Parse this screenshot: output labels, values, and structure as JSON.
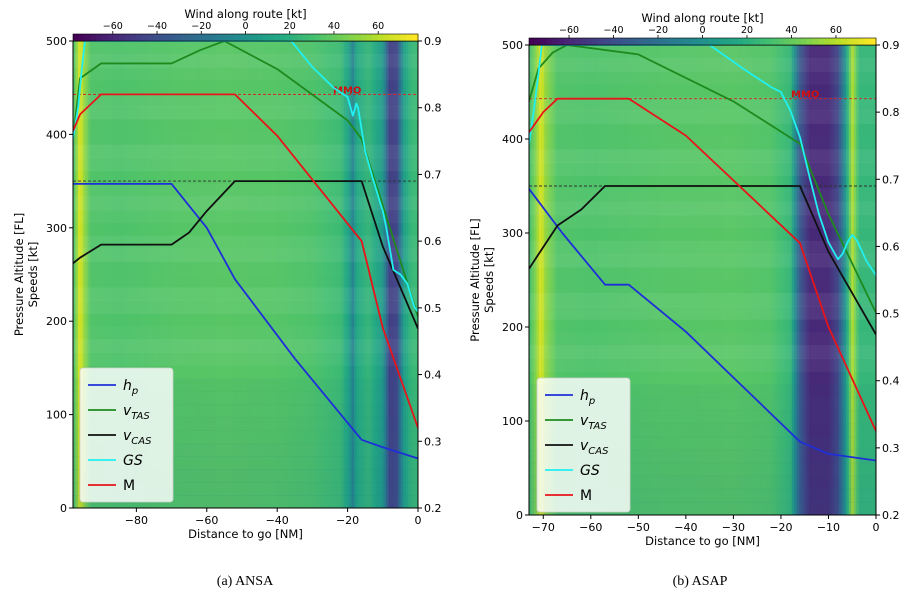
{
  "chart_data": [
    {
      "type": "line",
      "caption": "(a)  ANSA",
      "xlabel": "Distance to go [NM]",
      "ylabel_left": [
        "Pressure Altitude [FL]",
        "Speeds [kt]"
      ],
      "x2label": "Wind along route [kt]",
      "xlim": [
        -98,
        0
      ],
      "ylim": [
        0,
        500
      ],
      "y2lim": [
        0.2,
        0.9
      ],
      "x2lim": [
        -78,
        78
      ],
      "xticks": [
        -80,
        -60,
        -40,
        -20,
        0
      ],
      "yticks": [
        0,
        100,
        200,
        300,
        400,
        500
      ],
      "y2ticks": [
        0.2,
        0.3,
        0.4,
        0.5,
        0.6,
        0.7,
        0.8,
        0.9
      ],
      "x2ticks": [
        -60,
        -40,
        -20,
        0,
        20,
        40,
        60
      ],
      "mmo_label": "MMO",
      "mmo_value": 0.82,
      "vmo_value": 350,
      "legend_location": "lower-left",
      "legend": [
        "$h_p$",
        "$v_{TAS}$",
        "$v_{CAS}$",
        "GS",
        "M"
      ],
      "colors": {
        "h_p": "#1f2fd8",
        "v_TAS": "#1e8a1e",
        "v_CAS": "#101010",
        "GS": "#20f0f0",
        "M": "#e8141a",
        "mmo_line": "#d42020",
        "vmo_line": "#303030"
      },
      "background_wind": {
        "description": "wind along route colormap (viridis) over distance/altitude",
        "columns": [
          {
            "x": -98,
            "v": 30
          },
          {
            "x": -97,
            "v": 50
          },
          {
            "x": -96,
            "v": 72
          },
          {
            "x": -95,
            "v": 55
          },
          {
            "x": -93,
            "v": 35
          },
          {
            "x": -85,
            "v": 34
          },
          {
            "x": -70,
            "v": 36
          },
          {
            "x": -55,
            "v": 37
          },
          {
            "x": -40,
            "v": 36
          },
          {
            "x": -30,
            "v": 34
          },
          {
            "x": -22,
            "v": 28
          },
          {
            "x": -19.5,
            "v": 10
          },
          {
            "x": -18.5,
            "v": -10
          },
          {
            "x": -17.5,
            "v": 15
          },
          {
            "x": -14,
            "v": 25
          },
          {
            "x": -10,
            "v": 5
          },
          {
            "x": -8,
            "v": -50
          },
          {
            "x": -6,
            "v": -45
          },
          {
            "x": -4,
            "v": 10
          },
          {
            "x": -2,
            "v": 25
          },
          {
            "x": 0,
            "v": 28
          }
        ]
      },
      "series": [
        {
          "name": "$h_p$",
          "key": "h_p",
          "axis": "left",
          "x": [
            -98,
            -70,
            -60,
            -52,
            -35,
            -16,
            -10,
            0
          ],
          "y": [
            347,
            347,
            300,
            245,
            160,
            73,
            65,
            53
          ]
        },
        {
          "name": "$v_{TAS}$",
          "key": "v_TAS",
          "axis": "left",
          "x": [
            -98,
            -96,
            -90,
            -70,
            -62,
            -55,
            -40,
            -20,
            -16,
            -8,
            0
          ],
          "y": [
            395,
            460,
            476,
            476,
            490,
            500,
            470,
            415,
            395,
            300,
            205
          ]
        },
        {
          "name": "$v_{CAS}$",
          "key": "v_CAS",
          "axis": "left",
          "x": [
            -98,
            -96,
            -90,
            -70,
            -65,
            -60,
            -52,
            -16,
            -10,
            0
          ],
          "y": [
            262,
            268,
            282,
            282,
            295,
            318,
            350,
            350,
            280,
            192
          ]
        },
        {
          "name": "GS",
          "key": "GS",
          "axis": "left",
          "x": [
            -98,
            -96.5,
            -95.5,
            -94.6,
            -36,
            -30,
            -24,
            -20,
            -18.5,
            -17.5,
            -17,
            -16,
            -15,
            -13,
            -11,
            -10,
            -9,
            -7,
            -5,
            -3,
            -1,
            0
          ],
          "y": [
            395,
            430,
            470,
            500,
            500,
            472,
            450,
            440,
            420,
            433,
            428,
            405,
            382,
            355,
            330,
            318,
            300,
            255,
            250,
            240,
            215,
            210
          ]
        },
        {
          "name": "M",
          "key": "M",
          "axis": "right",
          "x": [
            -98,
            -96,
            -90,
            -52,
            -40,
            -16,
            -10,
            0
          ],
          "y": [
            0.765,
            0.79,
            0.82,
            0.82,
            0.758,
            0.6,
            0.47,
            0.32
          ]
        }
      ]
    },
    {
      "type": "line",
      "caption": "(b)  ASAP",
      "xlabel": "Distance to go [NM]",
      "ylabel_left": [
        "Pressure Altitude [FL]",
        "Speeds [kt]"
      ],
      "x2label": "Wind along route [kt]",
      "xlim": [
        -73,
        0
      ],
      "ylim": [
        0,
        500
      ],
      "y2lim": [
        0.2,
        0.9
      ],
      "x2lim": [
        -78,
        78
      ],
      "xticks": [
        -70,
        -60,
        -50,
        -40,
        -30,
        -20,
        -10,
        0
      ],
      "yticks": [
        0,
        100,
        200,
        300,
        400,
        500
      ],
      "y2ticks": [
        0.2,
        0.3,
        0.4,
        0.5,
        0.6,
        0.7,
        0.8,
        0.9
      ],
      "x2ticks": [
        -60,
        -40,
        -20,
        0,
        20,
        40,
        60
      ],
      "mmo_label": "MMO",
      "mmo_value": 0.82,
      "vmo_value": 350,
      "legend_location": "lower-left",
      "legend": [
        "$h_p$",
        "$v_{TAS}$",
        "$v_{CAS}$",
        "GS",
        "M"
      ],
      "colors": {
        "h_p": "#1f2fd8",
        "v_TAS": "#1e8a1e",
        "v_CAS": "#101010",
        "GS": "#20f0f0",
        "M": "#e8141a",
        "mmo_line": "#d42020",
        "vmo_line": "#303030"
      },
      "background_wind": {
        "description": "wind along route colormap (viridis) over distance/altitude",
        "columns": [
          {
            "x": -73,
            "v": 30
          },
          {
            "x": -71.5,
            "v": 50
          },
          {
            "x": -70.5,
            "v": 70
          },
          {
            "x": -69.5,
            "v": 52
          },
          {
            "x": -67,
            "v": 35
          },
          {
            "x": -60,
            "v": 34
          },
          {
            "x": -45,
            "v": 36
          },
          {
            "x": -30,
            "v": 37
          },
          {
            "x": -22,
            "v": 35
          },
          {
            "x": -18,
            "v": 25
          },
          {
            "x": -16,
            "v": -35
          },
          {
            "x": -14,
            "v": -60
          },
          {
            "x": -10,
            "v": -60
          },
          {
            "x": -8,
            "v": -45
          },
          {
            "x": -6.5,
            "v": 0
          },
          {
            "x": -5,
            "v": 60
          },
          {
            "x": -3.5,
            "v": 25
          },
          {
            "x": 0,
            "v": 25
          }
        ]
      },
      "series": [
        {
          "name": "$h_p$",
          "key": "h_p",
          "axis": "left",
          "x": [
            -73,
            -66,
            -57,
            -52,
            -40,
            -16,
            -10,
            0
          ],
          "y": [
            347,
            300,
            245,
            245,
            195,
            78,
            65,
            58
          ]
        },
        {
          "name": "$v_{TAS}$",
          "key": "v_TAS",
          "axis": "left",
          "x": [
            -73,
            -71,
            -68,
            -65,
            -50,
            -30,
            -16,
            -10,
            0
          ],
          "y": [
            440,
            475,
            492,
            500,
            490,
            440,
            395,
            320,
            215
          ]
        },
        {
          "name": "$v_{CAS}$",
          "key": "v_CAS",
          "axis": "left",
          "x": [
            -73,
            -67,
            -62,
            -57,
            -16,
            -10,
            0
          ],
          "y": [
            262,
            308,
            325,
            350,
            350,
            280,
            192
          ]
        },
        {
          "name": "GS",
          "key": "GS",
          "axis": "left",
          "x": [
            -73,
            -72,
            -71,
            -70.3,
            -35,
            -28,
            -22,
            -20,
            -18,
            -16,
            -14,
            -12,
            -10,
            -8,
            -7,
            -6,
            -5,
            -4,
            -2,
            0
          ],
          "y": [
            395,
            430,
            470,
            500,
            500,
            475,
            455,
            450,
            430,
            402,
            360,
            320,
            290,
            272,
            278,
            290,
            298,
            292,
            270,
            255
          ]
        },
        {
          "name": "M",
          "key": "M",
          "axis": "right",
          "x": [
            -73,
            -70,
            -67,
            -52,
            -40,
            -16,
            -10,
            0
          ],
          "y": [
            0.77,
            0.8,
            0.82,
            0.82,
            0.765,
            0.605,
            0.48,
            0.325
          ]
        }
      ]
    }
  ]
}
